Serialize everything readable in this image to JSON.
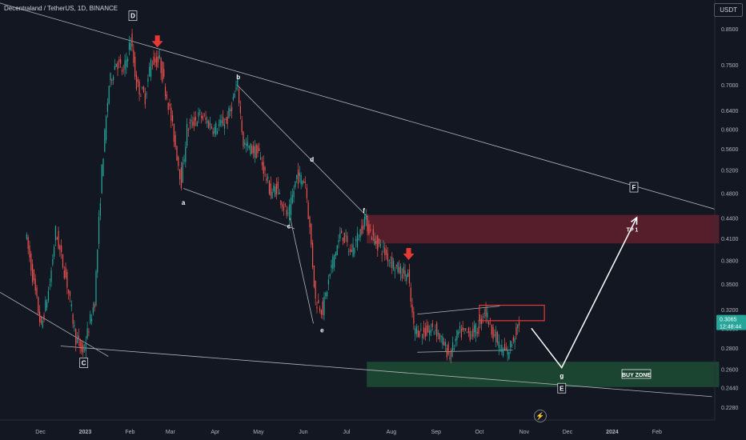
{
  "header": {
    "title": "Decentraland / TetherUS, 1D, BINANCE"
  },
  "currency_button": "USDT",
  "last_price": {
    "value": "0.3065",
    "countdown": "12:48:44",
    "color": "#26a69a"
  },
  "icons": {
    "bolt": "lightning-icon"
  },
  "colors": {
    "up": "#26a69a",
    "down": "#ef5350",
    "arrow": "#e53935",
    "tp_zone": "#5e1f2b",
    "buy_zone": "#1e4a33",
    "box": "#e53935"
  },
  "chart_data": {
    "type": "candlestick",
    "y_scale": "log",
    "ylim": [
      0.218,
      0.94
    ],
    "y_ticks": [
      "0.8500",
      "0.7500",
      "0.7000",
      "0.6400",
      "0.6000",
      "0.5600",
      "0.5200",
      "0.4800",
      "0.4400",
      "0.4100",
      "0.3800",
      "0.3500",
      "0.3200",
      "0.3000",
      "0.2800",
      "0.2600",
      "0.2440",
      "0.2280"
    ],
    "x_ticks": [
      "Dec",
      "2023",
      "Feb",
      "Mar",
      "Apr",
      "May",
      "Jun",
      "Jul",
      "Aug",
      "Sep",
      "Oct",
      "Nov",
      "Dec",
      "2024",
      "Feb"
    ],
    "price_path": [
      [
        "2022-11-21",
        0.42
      ],
      [
        "2022-11-26",
        0.36
      ],
      [
        "2022-12-02",
        0.3
      ],
      [
        "2022-12-08",
        0.35
      ],
      [
        "2022-12-12",
        0.42
      ],
      [
        "2022-12-20",
        0.35
      ],
      [
        "2022-12-26",
        0.29
      ],
      [
        "2022-12-31",
        0.275
      ],
      [
        "2023-01-08",
        0.33
      ],
      [
        "2023-01-13",
        0.52
      ],
      [
        "2023-01-18",
        0.7
      ],
      [
        "2023-01-23",
        0.76
      ],
      [
        "2023-01-28",
        0.73
      ],
      [
        "2023-02-02",
        0.82
      ],
      [
        "2023-02-06",
        0.7
      ],
      [
        "2023-02-12",
        0.67
      ],
      [
        "2023-02-16",
        0.76
      ],
      [
        "2023-02-22",
        0.76
      ],
      [
        "2023-03-01",
        0.64
      ],
      [
        "2023-03-09",
        0.5
      ],
      [
        "2023-03-13",
        0.6
      ],
      [
        "2023-03-22",
        0.63
      ],
      [
        "2023-04-01",
        0.6
      ],
      [
        "2023-04-10",
        0.62
      ],
      [
        "2023-04-17",
        0.7
      ],
      [
        "2023-04-21",
        0.57
      ],
      [
        "2023-05-02",
        0.55
      ],
      [
        "2023-05-10",
        0.48
      ],
      [
        "2023-05-14",
        0.49
      ],
      [
        "2023-05-22",
        0.44
      ],
      [
        "2023-05-28",
        0.51
      ],
      [
        "2023-06-03",
        0.5
      ],
      [
        "2023-06-07",
        0.4
      ],
      [
        "2023-06-10",
        0.33
      ],
      [
        "2023-06-15",
        0.32
      ],
      [
        "2023-06-22",
        0.38
      ],
      [
        "2023-06-28",
        0.42
      ],
      [
        "2023-07-04",
        0.39
      ],
      [
        "2023-07-11",
        0.42
      ],
      [
        "2023-07-14",
        0.44
      ],
      [
        "2023-07-20",
        0.41
      ],
      [
        "2023-07-28",
        0.39
      ],
      [
        "2023-08-05",
        0.37
      ],
      [
        "2023-08-13",
        0.36
      ],
      [
        "2023-08-17",
        0.3
      ],
      [
        "2023-08-24",
        0.295
      ],
      [
        "2023-09-01",
        0.3
      ],
      [
        "2023-09-11",
        0.272
      ],
      [
        "2023-09-17",
        0.295
      ],
      [
        "2023-09-26",
        0.295
      ],
      [
        "2023-10-01",
        0.3
      ],
      [
        "2023-10-05",
        0.32
      ],
      [
        "2023-10-10",
        0.3
      ],
      [
        "2023-10-16",
        0.28
      ],
      [
        "2023-10-21",
        0.275
      ],
      [
        "2023-10-29",
        0.3065
      ]
    ],
    "wave_labels": [
      {
        "label": "C",
        "date": "2022-12-31",
        "price": 0.266,
        "boxed": true
      },
      {
        "label": "D",
        "date": "2023-02-03",
        "price": 0.89,
        "boxed": true
      },
      {
        "label": "a",
        "date": "2023-03-10",
        "price": 0.465
      },
      {
        "label": "b",
        "date": "2023-04-17",
        "price": 0.72
      },
      {
        "label": "c",
        "date": "2023-05-22",
        "price": 0.428
      },
      {
        "label": "d",
        "date": "2023-06-07",
        "price": 0.54
      },
      {
        "label": "e",
        "date": "2023-06-14",
        "price": 0.298
      },
      {
        "label": "f",
        "date": "2023-07-13",
        "price": 0.452
      },
      {
        "label": "g",
        "date": "2023-11-27",
        "price": 0.2545
      },
      {
        "label": "E",
        "date": "2023-11-27",
        "price": 0.2435,
        "boxed": true
      },
      {
        "label": "F",
        "date": "2024-01-16",
        "price": 0.49,
        "boxed": true
      }
    ],
    "zones": [
      {
        "label": "TP 1",
        "from": "2023-07-15",
        "to": "2024-03-15",
        "high": 0.445,
        "low": 0.403,
        "color": "#5e1f2b"
      },
      {
        "label": "BUY ZONE",
        "from": "2023-07-15",
        "to": "2024-03-15",
        "high": 0.267,
        "low": 0.2445,
        "color": "#1e4a33"
      }
    ],
    "trend_lines": [
      {
        "from": [
          "2022-11-03",
          0.93
        ],
        "to": [
          "2024-03-12",
          0.454
        ]
      },
      {
        "from": [
          "2022-11-03",
          0.34
        ],
        "to": [
          "2023-01-17",
          0.272
        ]
      },
      {
        "from": [
          "2022-12-15",
          0.282
        ],
        "to": [
          "2024-03-10",
          0.2365
        ]
      },
      {
        "from": [
          "2023-03-10",
          0.488
        ],
        "to": [
          "2023-05-26",
          0.424
        ]
      },
      {
        "from": [
          "2023-04-16",
          0.7
        ],
        "to": [
          "2023-07-15",
          0.443
        ]
      },
      {
        "from": [
          "2023-05-23",
          0.44
        ],
        "to": [
          "2023-06-08",
          0.305
        ]
      },
      {
        "from": [
          "2023-08-19",
          0.315
        ],
        "to": [
          "2023-10-15",
          0.324
        ]
      },
      {
        "from": [
          "2023-08-19",
          0.276
        ],
        "to": [
          "2023-10-24",
          0.278
        ]
      }
    ],
    "box": {
      "from": "2023-10-01",
      "to": "2023-11-15",
      "high": 0.325,
      "low": 0.308
    },
    "projection": [
      [
        "2023-11-06",
        0.3
      ],
      [
        "2023-11-27",
        0.2615
      ],
      [
        "2024-01-18",
        0.441
      ]
    ],
    "down_arrows": [
      {
        "date": "2023-02-20",
        "price": 0.815
      },
      {
        "date": "2023-08-13",
        "price": 0.389
      }
    ]
  }
}
